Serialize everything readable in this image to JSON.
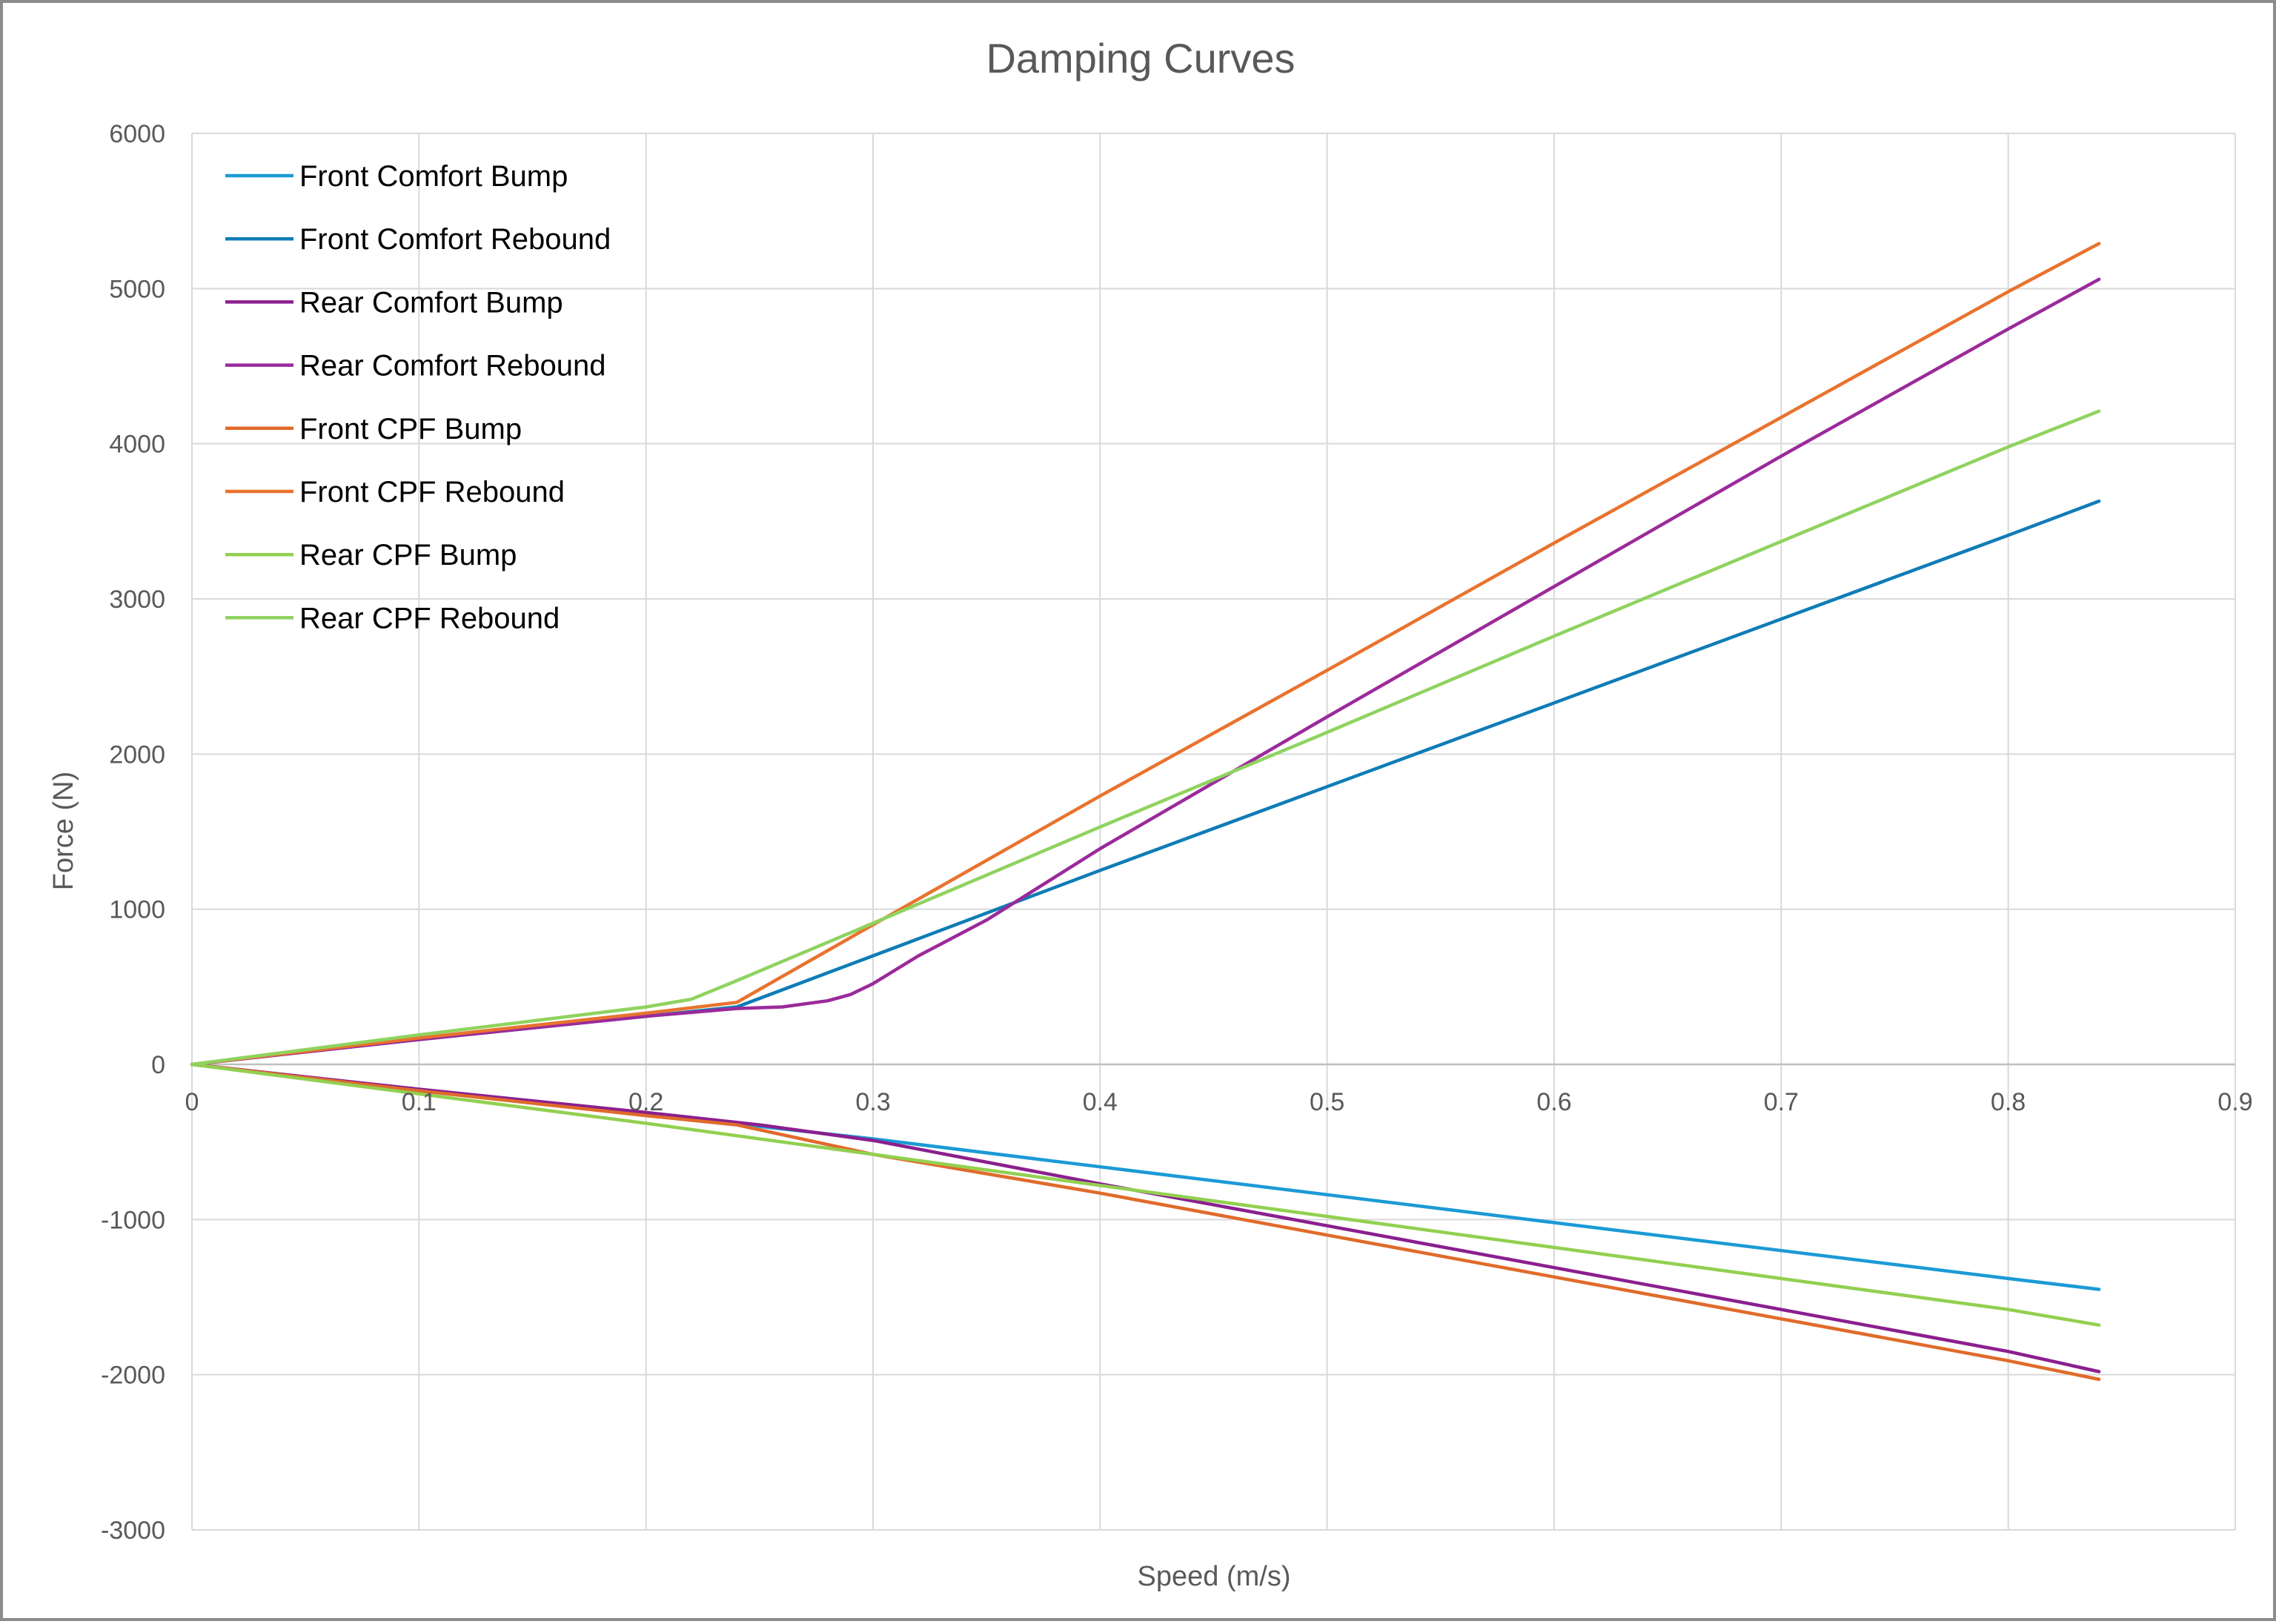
{
  "chart_data": {
    "type": "line",
    "title": "Damping Curves",
    "xlabel": "Speed  (m/s)",
    "ylabel": "Force (N)",
    "xlim": [
      0,
      0.9
    ],
    "ylim": [
      -3000,
      6000
    ],
    "x_ticks": [
      "0",
      "0.1",
      "0.2",
      "0.3",
      "0.4",
      "0.5",
      "0.6",
      "0.7",
      "0.8",
      "0.9"
    ],
    "y_ticks": [
      "6000",
      "5000",
      "4000",
      "3000",
      "2000",
      "1000",
      "0",
      "-1000",
      "-2000",
      "-3000"
    ],
    "grid": true,
    "legend_position": "top-left",
    "series": [
      {
        "name": "Front Comfort  Bump",
        "color": "#1b9ad6",
        "points": [
          [
            0,
            0
          ],
          [
            0.1,
            -170
          ],
          [
            0.2,
            -320
          ],
          [
            0.25,
            -400
          ],
          [
            0.3,
            -480
          ],
          [
            0.4,
            -660
          ],
          [
            0.5,
            -840
          ],
          [
            0.6,
            -1020
          ],
          [
            0.7,
            -1200
          ],
          [
            0.8,
            -1380
          ],
          [
            0.84,
            -1450
          ]
        ]
      },
      {
        "name": "Front Comfort  Rebound",
        "color": "#0f7cb6",
        "points": [
          [
            0,
            0
          ],
          [
            0.1,
            160
          ],
          [
            0.2,
            310
          ],
          [
            0.24,
            370
          ],
          [
            0.3,
            700
          ],
          [
            0.4,
            1250
          ],
          [
            0.5,
            1790
          ],
          [
            0.6,
            2330
          ],
          [
            0.7,
            2870
          ],
          [
            0.8,
            3410
          ],
          [
            0.84,
            3630
          ]
        ]
      },
      {
        "name": "Rear Comfort Bump",
        "color": "#8b1f8f",
        "points": [
          [
            0,
            0
          ],
          [
            0.1,
            -160
          ],
          [
            0.2,
            -310
          ],
          [
            0.25,
            -390
          ],
          [
            0.3,
            -490
          ],
          [
            0.4,
            -770
          ],
          [
            0.5,
            -1040
          ],
          [
            0.6,
            -1310
          ],
          [
            0.7,
            -1580
          ],
          [
            0.8,
            -1850
          ],
          [
            0.84,
            -1980
          ]
        ]
      },
      {
        "name": "Rear Comfort Rebound",
        "color": "#9b2a9b",
        "points": [
          [
            0,
            0
          ],
          [
            0.1,
            160
          ],
          [
            0.2,
            310
          ],
          [
            0.24,
            360
          ],
          [
            0.26,
            370
          ],
          [
            0.28,
            410
          ],
          [
            0.29,
            450
          ],
          [
            0.3,
            520
          ],
          [
            0.32,
            700
          ],
          [
            0.35,
            930
          ],
          [
            0.4,
            1390
          ],
          [
            0.5,
            2240
          ],
          [
            0.6,
            3080
          ],
          [
            0.7,
            3920
          ],
          [
            0.8,
            4740
          ],
          [
            0.84,
            5060
          ]
        ]
      },
      {
        "name": "Front CPF Bump",
        "color": "#e06b2b",
        "points": [
          [
            0,
            0
          ],
          [
            0.1,
            -170
          ],
          [
            0.2,
            -330
          ],
          [
            0.24,
            -390
          ],
          [
            0.3,
            -580
          ],
          [
            0.4,
            -830
          ],
          [
            0.5,
            -1100
          ],
          [
            0.6,
            -1370
          ],
          [
            0.7,
            -1640
          ],
          [
            0.8,
            -1910
          ],
          [
            0.84,
            -2030
          ]
        ]
      },
      {
        "name": "Front CPF Rebound",
        "color": "#e8732e",
        "points": [
          [
            0,
            0
          ],
          [
            0.1,
            170
          ],
          [
            0.2,
            330
          ],
          [
            0.24,
            400
          ],
          [
            0.3,
            900
          ],
          [
            0.4,
            1730
          ],
          [
            0.5,
            2540
          ],
          [
            0.6,
            3360
          ],
          [
            0.7,
            4170
          ],
          [
            0.8,
            4980
          ],
          [
            0.84,
            5290
          ]
        ]
      },
      {
        "name": "Rear CPF Bump",
        "color": "#92d050",
        "points": [
          [
            0,
            0
          ],
          [
            0.1,
            -190
          ],
          [
            0.2,
            -380
          ],
          [
            0.3,
            -580
          ],
          [
            0.4,
            -780
          ],
          [
            0.5,
            -980
          ],
          [
            0.6,
            -1180
          ],
          [
            0.7,
            -1380
          ],
          [
            0.8,
            -1580
          ],
          [
            0.84,
            -1680
          ]
        ]
      },
      {
        "name": "Rear CPF Rebound",
        "color": "#8fd35f",
        "points": [
          [
            0,
            0
          ],
          [
            0.1,
            190
          ],
          [
            0.2,
            370
          ],
          [
            0.22,
            420
          ],
          [
            0.24,
            540
          ],
          [
            0.3,
            910
          ],
          [
            0.4,
            1530
          ],
          [
            0.5,
            2140
          ],
          [
            0.6,
            2760
          ],
          [
            0.7,
            3370
          ],
          [
            0.8,
            3980
          ],
          [
            0.84,
            4210
          ]
        ]
      }
    ]
  }
}
